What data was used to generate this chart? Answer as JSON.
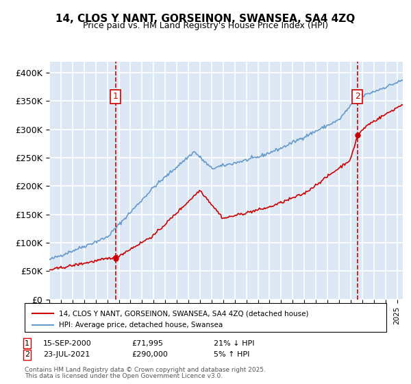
{
  "title": "14, CLOS Y NANT, GORSEINON, SWANSEA, SA4 4ZQ",
  "subtitle": "Price paid vs. HM Land Registry's House Price Index (HPI)",
  "ylabel": "",
  "bg_color": "#dde8f5",
  "plot_bg_color": "#dde8f5",
  "grid_color": "#ffffff",
  "hpi_color": "#6699cc",
  "price_color": "#cc0000",
  "marker_color": "#cc0000",
  "annotation_color": "#cc0000",
  "ylim": [
    0,
    420000
  ],
  "yticks": [
    0,
    50000,
    100000,
    150000,
    200000,
    250000,
    300000,
    350000,
    400000
  ],
  "sale1_date_idx": 5.75,
  "sale1_price": 71995,
  "sale1_label": "1",
  "sale1_year": 2000.71,
  "sale2_date_idx": 26.58,
  "sale2_price": 290000,
  "sale2_label": "2",
  "sale2_year": 2021.58,
  "legend_line1": "14, CLOS Y NANT, GORSEINON, SWANSEA, SA4 4ZQ (detached house)",
  "legend_line2": "HPI: Average price, detached house, Swansea",
  "footer1": "Contains HM Land Registry data © Crown copyright and database right 2025.",
  "footer2": "This data is licensed under the Open Government Licence v3.0.",
  "table_row1": "1    15-SEP-2000              £71,995           21% ↓ HPI",
  "table_row2": "2    23-JUL-2021              £290,000         5% ↑ HPI"
}
